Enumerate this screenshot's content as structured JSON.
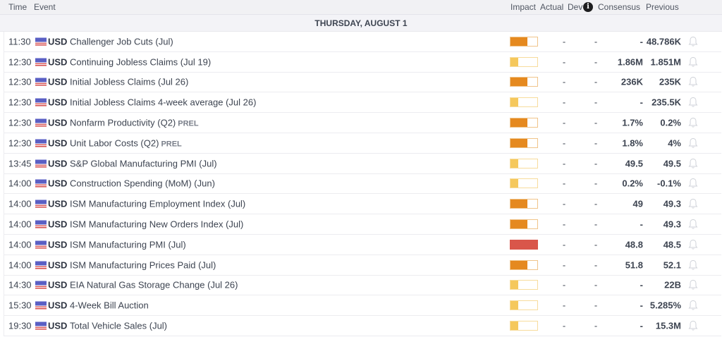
{
  "header": {
    "time": "Time",
    "event": "Event",
    "impact": "Impact",
    "actual": "Actual",
    "dev": "Dev",
    "info_icon": "i",
    "consensus": "Consensus",
    "previous": "Previous"
  },
  "date_label": "THURSDAY, AUGUST 1",
  "colors": {
    "impact_high": "#d9564a",
    "impact_medium": "#e5891f",
    "impact_low": "#f5c85c"
  },
  "rows": [
    {
      "time": "11:30",
      "currency": "USD",
      "event": "Challenger Job Cuts (Jul)",
      "tag": "",
      "impact": "medium",
      "actual": "-",
      "dev": "-",
      "consensus": "-",
      "previous": "48.786K"
    },
    {
      "time": "12:30",
      "currency": "USD",
      "event": "Continuing Jobless Claims (Jul 19)",
      "tag": "",
      "impact": "low",
      "actual": "-",
      "dev": "-",
      "consensus": "1.86M",
      "previous": "1.851M"
    },
    {
      "time": "12:30",
      "currency": "USD",
      "event": "Initial Jobless Claims (Jul 26)",
      "tag": "",
      "impact": "medium",
      "actual": "-",
      "dev": "-",
      "consensus": "236K",
      "previous": "235K"
    },
    {
      "time": "12:30",
      "currency": "USD",
      "event": "Initial Jobless Claims 4-week average (Jul 26)",
      "tag": "",
      "impact": "low",
      "actual": "-",
      "dev": "-",
      "consensus": "-",
      "previous": "235.5K"
    },
    {
      "time": "12:30",
      "currency": "USD",
      "event": "Nonfarm Productivity (Q2)",
      "tag": "PREL",
      "impact": "medium",
      "actual": "-",
      "dev": "-",
      "consensus": "1.7%",
      "previous": "0.2%"
    },
    {
      "time": "12:30",
      "currency": "USD",
      "event": "Unit Labor Costs (Q2)",
      "tag": "PREL",
      "impact": "medium",
      "actual": "-",
      "dev": "-",
      "consensus": "1.8%",
      "previous": "4%"
    },
    {
      "time": "13:45",
      "currency": "USD",
      "event": "S&P Global Manufacturing PMI (Jul)",
      "tag": "",
      "impact": "low",
      "actual": "-",
      "dev": "-",
      "consensus": "49.5",
      "previous": "49.5"
    },
    {
      "time": "14:00",
      "currency": "USD",
      "event": "Construction Spending (MoM) (Jun)",
      "tag": "",
      "impact": "low",
      "actual": "-",
      "dev": "-",
      "consensus": "0.2%",
      "previous": "-0.1%"
    },
    {
      "time": "14:00",
      "currency": "USD",
      "event": "ISM Manufacturing Employment Index (Jul)",
      "tag": "",
      "impact": "medium",
      "actual": "-",
      "dev": "-",
      "consensus": "49",
      "previous": "49.3"
    },
    {
      "time": "14:00",
      "currency": "USD",
      "event": "ISM Manufacturing New Orders Index (Jul)",
      "tag": "",
      "impact": "medium",
      "actual": "-",
      "dev": "-",
      "consensus": "-",
      "previous": "49.3"
    },
    {
      "time": "14:00",
      "currency": "USD",
      "event": "ISM Manufacturing PMI (Jul)",
      "tag": "",
      "impact": "high",
      "actual": "-",
      "dev": "-",
      "consensus": "48.8",
      "previous": "48.5"
    },
    {
      "time": "14:00",
      "currency": "USD",
      "event": "ISM Manufacturing Prices Paid (Jul)",
      "tag": "",
      "impact": "medium",
      "actual": "-",
      "dev": "-",
      "consensus": "51.8",
      "previous": "52.1"
    },
    {
      "time": "14:30",
      "currency": "USD",
      "event": "EIA Natural Gas Storage Change (Jul 26)",
      "tag": "",
      "impact": "low",
      "actual": "-",
      "dev": "-",
      "consensus": "-",
      "previous": "22B"
    },
    {
      "time": "15:30",
      "currency": "USD",
      "event": "4-Week Bill Auction",
      "tag": "",
      "impact": "low",
      "actual": "-",
      "dev": "-",
      "consensus": "-",
      "previous": "5.285%"
    },
    {
      "time": "19:30",
      "currency": "USD",
      "event": "Total Vehicle Sales (Jul)",
      "tag": "",
      "impact": "low",
      "actual": "-",
      "dev": "-",
      "consensus": "-",
      "previous": "15.3M"
    }
  ]
}
